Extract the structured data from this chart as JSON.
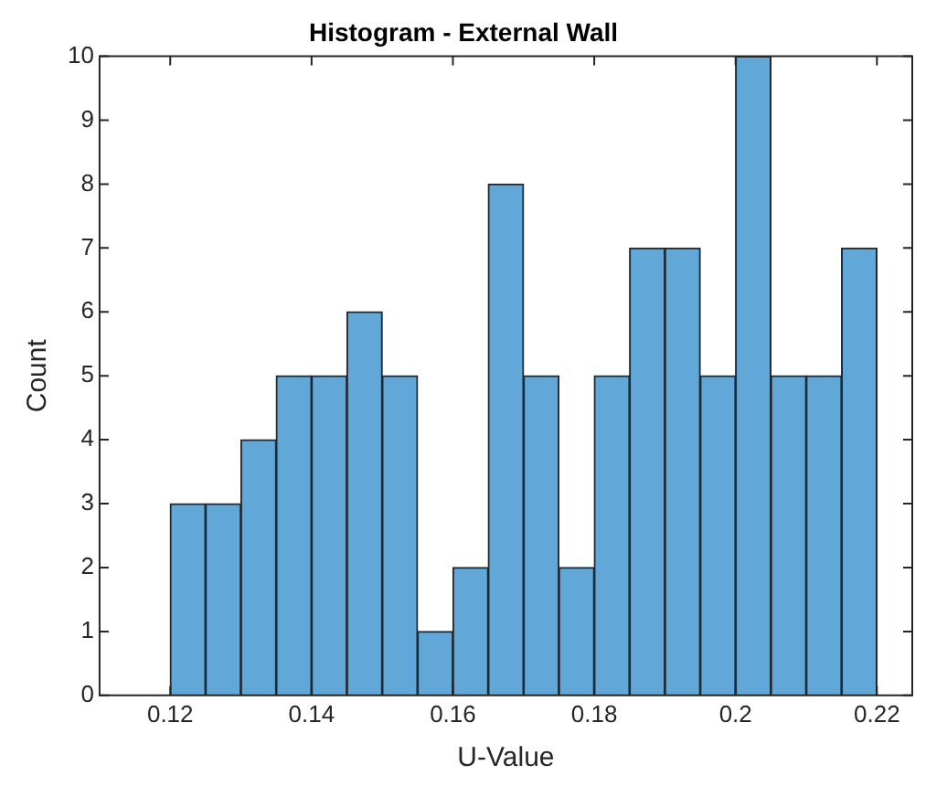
{
  "chart_data": {
    "type": "histogram",
    "title": "Histogram - External Wall",
    "xlabel": "U-Value",
    "ylabel": "Count",
    "bins": [
      0.12,
      0.125,
      0.13,
      0.135,
      0.14,
      0.145,
      0.15,
      0.155,
      0.16,
      0.165,
      0.17,
      0.175,
      0.18,
      0.185,
      0.19,
      0.195,
      0.2,
      0.205,
      0.21,
      0.215,
      0.22
    ],
    "values": [
      3,
      3,
      4,
      5,
      5,
      6,
      5,
      1,
      2,
      8,
      5,
      2,
      5,
      7,
      7,
      5,
      10,
      5,
      5,
      7
    ],
    "color": "#61a8d9",
    "xlim": [
      0.11,
      0.225
    ],
    "xticks": [
      0.12,
      0.14,
      0.16,
      0.18,
      0.2,
      0.22
    ],
    "ylim": [
      0,
      10
    ],
    "yticks": [
      0,
      1,
      2,
      3,
      4,
      5,
      6,
      7,
      8,
      9,
      10
    ],
    "grid": false,
    "legend": false
  }
}
